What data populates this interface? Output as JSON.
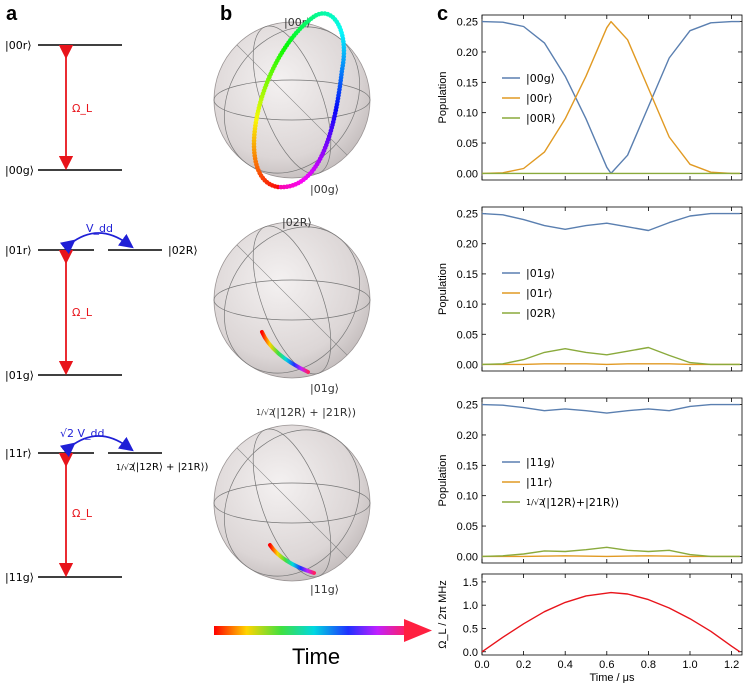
{
  "panels": {
    "a": "a",
    "b": "b",
    "c": "c"
  },
  "colors": {
    "laser": "#e8141b",
    "coupling": "#1f1fd6",
    "g_series": "#5a7fb0",
    "r_series": "#e19a23",
    "R_series": "#8aaa3c",
    "rabi": "#e8141b"
  },
  "level_diagrams": [
    {
      "top": "|00r⟩",
      "bottom": "|00g⟩",
      "laser": "Ω_L"
    },
    {
      "top": "|01r⟩",
      "bottom": "|01g⟩",
      "laser": "Ω_L",
      "coupling": "V_dd",
      "side": "|02R⟩"
    },
    {
      "top": "|11r⟩",
      "bottom": "|11g⟩",
      "laser": "Ω_L",
      "coupling": "√2 V_dd",
      "side": "(|12R⟩ + |21R⟩)",
      "side_prefix": "1/√2"
    }
  ],
  "bloch": [
    {
      "top_label": "|00r⟩",
      "bottom_label": "|00g⟩"
    },
    {
      "top_label": "|02R⟩",
      "bottom_label": "|01g⟩"
    },
    {
      "top_label": "(|12R⟩ + |21R⟩)",
      "top_prefix": "1/√2",
      "bottom_label": "|11g⟩"
    }
  ],
  "time_label": "Time",
  "chart_data": [
    {
      "type": "line",
      "ylabel": "Population",
      "ylim": [
        0,
        0.25
      ],
      "yticks": [
        "0.00",
        "0.05",
        "0.10",
        "0.15",
        "0.20",
        "0.25"
      ],
      "xlim": [
        0,
        1.25
      ],
      "series": [
        {
          "name": "|00g⟩",
          "color": "#5a7fb0",
          "x": [
            0,
            0.1,
            0.2,
            0.3,
            0.4,
            0.5,
            0.6,
            0.62,
            0.7,
            0.8,
            0.9,
            1.0,
            1.1,
            1.2,
            1.24
          ],
          "y": [
            0.25,
            0.249,
            0.242,
            0.215,
            0.16,
            0.09,
            0.01,
            0.0,
            0.03,
            0.11,
            0.19,
            0.235,
            0.248,
            0.25,
            0.25
          ]
        },
        {
          "name": "|00r⟩",
          "color": "#e19a23",
          "x": [
            0,
            0.1,
            0.2,
            0.3,
            0.4,
            0.5,
            0.6,
            0.62,
            0.7,
            0.8,
            0.9,
            1.0,
            1.1,
            1.2,
            1.24
          ],
          "y": [
            0.0,
            0.001,
            0.008,
            0.035,
            0.09,
            0.16,
            0.24,
            0.25,
            0.22,
            0.14,
            0.06,
            0.015,
            0.002,
            0.0,
            0.0
          ]
        },
        {
          "name": "|00R⟩",
          "color": "#8aaa3c",
          "x": [
            0,
            1.24
          ],
          "y": [
            0,
            0
          ]
        }
      ]
    },
    {
      "type": "line",
      "ylabel": "Population",
      "ylim": [
        0,
        0.25
      ],
      "yticks": [
        "0.00",
        "0.05",
        "0.10",
        "0.15",
        "0.20",
        "0.25"
      ],
      "xlim": [
        0,
        1.25
      ],
      "series": [
        {
          "name": "|01g⟩",
          "color": "#5a7fb0",
          "x": [
            0,
            0.1,
            0.2,
            0.3,
            0.4,
            0.5,
            0.6,
            0.7,
            0.8,
            0.9,
            1.0,
            1.1,
            1.24
          ],
          "y": [
            0.25,
            0.248,
            0.24,
            0.23,
            0.224,
            0.23,
            0.234,
            0.228,
            0.222,
            0.235,
            0.246,
            0.25,
            0.25
          ]
        },
        {
          "name": "|01r⟩",
          "color": "#e19a23",
          "x": [
            0,
            0.2,
            0.3,
            0.4,
            0.5,
            0.6,
            0.7,
            0.8,
            0.9,
            1.0,
            1.24
          ],
          "y": [
            0,
            0,
            0.001,
            0.001,
            0.001,
            0.0,
            0.001,
            0.001,
            0.001,
            0,
            0
          ]
        },
        {
          "name": "|02R⟩",
          "color": "#8aaa3c",
          "x": [
            0,
            0.1,
            0.2,
            0.3,
            0.4,
            0.5,
            0.6,
            0.7,
            0.8,
            0.9,
            1.0,
            1.1,
            1.24
          ],
          "y": [
            0,
            0.001,
            0.008,
            0.02,
            0.026,
            0.02,
            0.016,
            0.022,
            0.028,
            0.015,
            0.003,
            0,
            0
          ]
        }
      ]
    },
    {
      "type": "line",
      "ylabel": "Population",
      "ylim": [
        0,
        0.25
      ],
      "yticks": [
        "0.00",
        "0.05",
        "0.10",
        "0.15",
        "0.20",
        "0.25"
      ],
      "xlim": [
        0,
        1.25
      ],
      "series": [
        {
          "name": "|11g⟩",
          "color": "#5a7fb0",
          "x": [
            0,
            0.1,
            0.2,
            0.3,
            0.4,
            0.5,
            0.6,
            0.7,
            0.8,
            0.9,
            1.0,
            1.1,
            1.24
          ],
          "y": [
            0.25,
            0.249,
            0.245,
            0.24,
            0.243,
            0.24,
            0.236,
            0.24,
            0.243,
            0.24,
            0.247,
            0.25,
            0.25
          ]
        },
        {
          "name": "|11r⟩",
          "color": "#e19a23",
          "x": [
            0,
            0.2,
            0.4,
            0.6,
            0.8,
            1.0,
            1.24
          ],
          "y": [
            0,
            0,
            0.001,
            0.0,
            0.001,
            0,
            0
          ]
        },
        {
          "name": "(|12R⟩+|21R⟩)",
          "name_prefix": "1/√2",
          "color": "#8aaa3c",
          "x": [
            0,
            0.1,
            0.2,
            0.3,
            0.4,
            0.5,
            0.6,
            0.7,
            0.8,
            0.9,
            1.0,
            1.1,
            1.24
          ],
          "y": [
            0,
            0.001,
            0.004,
            0.009,
            0.008,
            0.011,
            0.015,
            0.01,
            0.008,
            0.01,
            0.003,
            0,
            0
          ]
        }
      ]
    },
    {
      "type": "line",
      "ylabel": "Ω_L / 2π MHz",
      "xlabel": "Time / μs",
      "ylim": [
        0,
        1.6
      ],
      "yticks": [
        "0.0",
        "0.5",
        "1.0",
        "1.5"
      ],
      "xlim": [
        0,
        1.25
      ],
      "xticks": [
        "0.0",
        "0.2",
        "0.4",
        "0.6",
        "0.8",
        "1.0",
        "1.2"
      ],
      "series": [
        {
          "name": "Ω_L",
          "color": "#e8141b",
          "x": [
            0,
            0.1,
            0.2,
            0.3,
            0.4,
            0.5,
            0.62,
            0.7,
            0.8,
            0.9,
            1.0,
            1.1,
            1.2,
            1.24
          ],
          "y": [
            0,
            0.31,
            0.6,
            0.86,
            1.06,
            1.2,
            1.27,
            1.24,
            1.12,
            0.94,
            0.71,
            0.44,
            0.12,
            0
          ]
        }
      ]
    }
  ]
}
